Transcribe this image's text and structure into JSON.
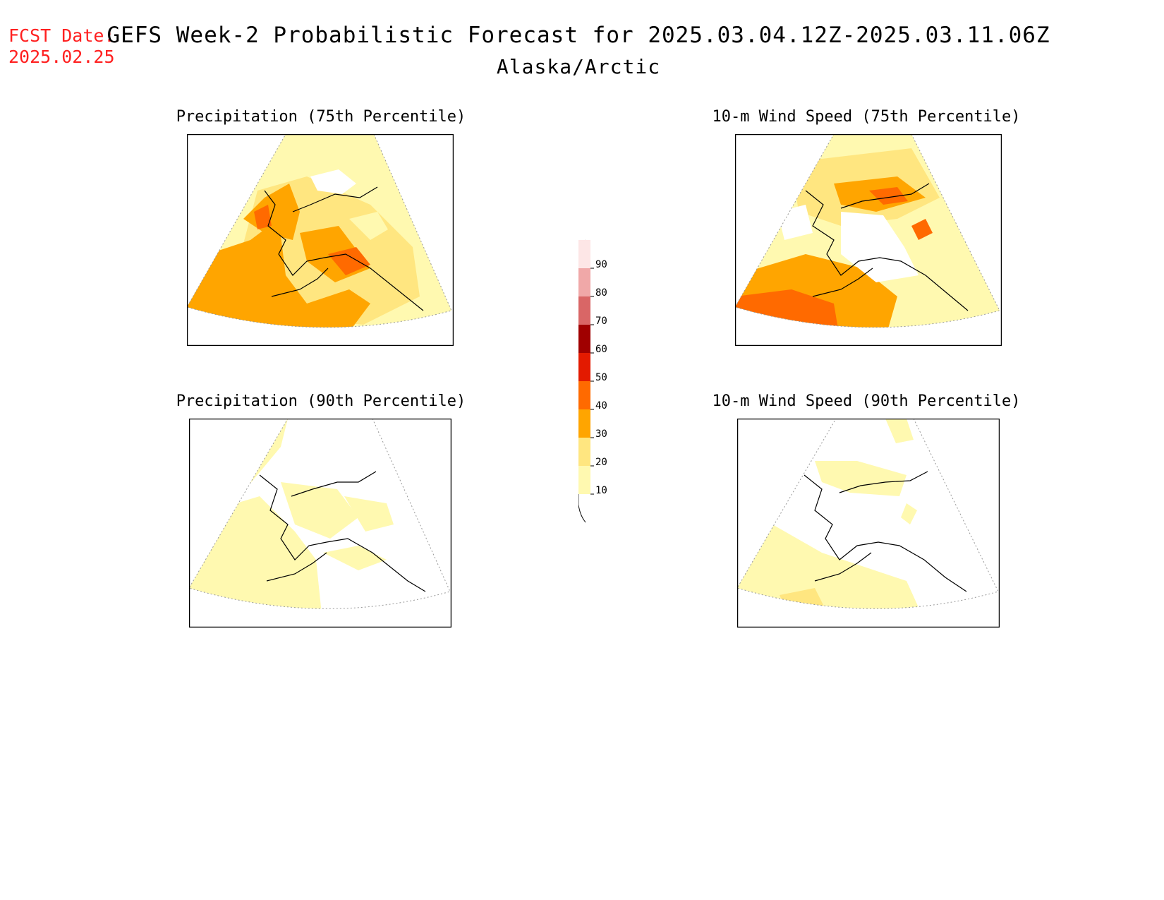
{
  "header": {
    "fcst_label": "FCST Date:",
    "fcst_date": "2025.02.25",
    "title": "GEFS Week-2 Probabilistic Forecast for 2025.03.04.12Z-2025.03.11.06Z",
    "subtitle": "Alaska/Arctic"
  },
  "panels": [
    {
      "id": "precip75",
      "title": "Precipitation (75th Percentile)"
    },
    {
      "id": "wind75",
      "title": "10-m Wind Speed (75th Percentile)"
    },
    {
      "id": "precip90",
      "title": "Precipitation (90th Percentile)"
    },
    {
      "id": "wind90",
      "title": "10-m Wind Speed (90th Percentile)"
    }
  ],
  "colorbar": {
    "labels": [
      "10",
      "20",
      "30",
      "40",
      "50",
      "60",
      "70",
      "80",
      "90"
    ],
    "colors": [
      "#fff9b0",
      "#ffe680",
      "#ffa500",
      "#ff6a00",
      "#e31a00",
      "#a00000",
      "#d96666",
      "#f0a8a8",
      "#fde6e6"
    ]
  }
}
